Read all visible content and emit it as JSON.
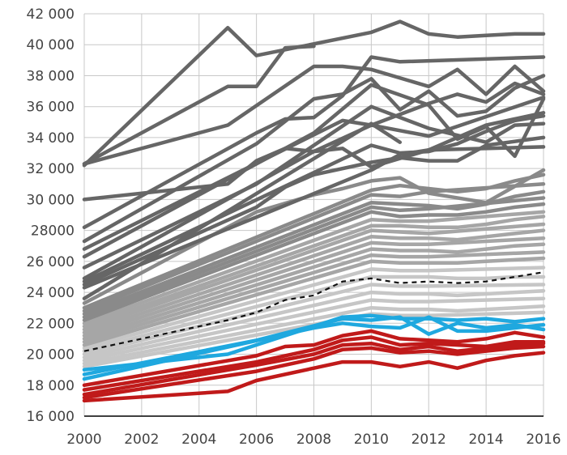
{
  "chart_data": {
    "type": "line",
    "title": "",
    "xlabel": "",
    "ylabel": "",
    "xlim": [
      2000,
      2016
    ],
    "ylim": [
      16000,
      42000
    ],
    "grid": true,
    "legend": "none",
    "x": [
      2000,
      2001,
      2002,
      2003,
      2004,
      2005,
      2006,
      2007,
      2008,
      2009,
      2010,
      2011,
      2012,
      2013,
      2014,
      2015,
      2016
    ],
    "x_ticks": [
      2000,
      2002,
      2004,
      2006,
      2008,
      2010,
      2012,
      2014,
      2016
    ],
    "x_tick_labels": [
      "2000",
      "2002",
      "2004",
      "2006",
      "2008",
      "2010",
      "2012",
      "2014",
      "2016"
    ],
    "y_ticks": [
      16000,
      18000,
      20000,
      22000,
      24000,
      26000,
      28000,
      30000,
      32000,
      34000,
      36000,
      38000,
      40000,
      42000
    ],
    "y_tick_labels": [
      "16 000",
      "18 000",
      "20 000",
      "22 000",
      "24 000",
      "26 000",
      "28000",
      "30 000",
      "32 000",
      "34 000",
      "36 000",
      "38 000",
      "40 000",
      "42 000"
    ],
    "colors": {
      "dark": "#666666",
      "mid": "#8a8a8a",
      "light": "#a6a6a6",
      "pale": "#c6c6c6",
      "blue": "#1fa8df",
      "red": "#c01a1a",
      "reference": "#111111",
      "grid": "#c8c8c8"
    },
    "series": [
      {
        "group": "dark",
        "values": [
          32200,
          null,
          null,
          null,
          null,
          41100,
          39300,
          null,
          null,
          null,
          40800,
          41500,
          40700,
          40500,
          40600,
          40700,
          40700
        ]
      },
      {
        "group": "dark",
        "values": [
          32300,
          null,
          null,
          null,
          null,
          37300,
          37300,
          39800,
          39900,
          null,
          null,
          null,
          null,
          null,
          null,
          null,
          null
        ]
      },
      {
        "group": "dark",
        "values": [
          null,
          null,
          null,
          null,
          null,
          null,
          null,
          null,
          null,
          null,
          null,
          null,
          null,
          null,
          null,
          null,
          null
        ]
      },
      {
        "group": "dark",
        "values": [
          30000,
          null,
          null,
          null,
          null,
          31000,
          32500,
          33300,
          33100,
          null,
          34800,
          null,
          34100,
          null,
          null,
          null,
          36600
        ]
      },
      {
        "group": "dark",
        "values": [
          28700,
          null,
          null,
          null,
          null,
          null,
          null,
          null,
          null,
          null,
          null,
          null,
          null,
          null,
          null,
          null,
          null
        ]
      },
      {
        "group": "dark",
        "values": [
          null,
          null,
          null,
          null,
          null,
          null,
          null,
          null,
          null,
          null,
          null,
          null,
          null,
          null,
          null,
          null,
          null
        ]
      },
      {
        "group": "dark",
        "values": [
          32300,
          null,
          null,
          null,
          null,
          34800,
          null,
          null,
          38600,
          38600,
          38400,
          null,
          37300,
          38400,
          36800,
          38600,
          37000
        ]
      },
      {
        "group": "dark",
        "values": [
          28200,
          null,
          null,
          null,
          null,
          null,
          34300,
          35200,
          35300,
          36700,
          39200,
          38900,
          null,
          null,
          null,
          null,
          39200
        ]
      },
      {
        "group": "dark",
        "values": [
          27300,
          null,
          null,
          null,
          null,
          null,
          33600,
          null,
          36500,
          36800,
          37800,
          35800,
          37000,
          35400,
          35700,
          37200,
          38000
        ]
      },
      {
        "group": "dark",
        "values": [
          26800,
          null,
          null,
          null,
          null,
          null,
          null,
          null,
          null,
          35100,
          34800,
          null,
          36200,
          36800,
          36300,
          37500,
          36800
        ]
      },
      {
        "group": "dark",
        "values": [
          26300,
          null,
          null,
          null,
          null,
          null,
          32300,
          null,
          34300,
          null,
          37400,
          null,
          36100,
          33900,
          34700,
          32800,
          36500
        ]
      },
      {
        "group": "dark",
        "values": [
          25600,
          null,
          null,
          null,
          null,
          null,
          31000,
          null,
          null,
          null,
          36000,
          null,
          34600,
          null,
          33700,
          34800,
          34900
        ]
      },
      {
        "group": "dark",
        "values": [
          25300,
          null,
          null,
          null,
          null,
          null,
          null,
          null,
          null,
          null,
          null,
          null,
          null,
          null,
          null,
          null,
          null
        ]
      },
      {
        "group": "dark",
        "values": [
          24900,
          null,
          null,
          null,
          null,
          null,
          null,
          null,
          33100,
          33300,
          32100,
          null,
          33200,
          null,
          34800,
          null,
          35600
        ]
      },
      {
        "group": "dark",
        "values": [
          24700,
          null,
          null,
          null,
          null,
          null,
          null,
          null,
          null,
          null,
          33500,
          33000,
          33100,
          33600,
          34400,
          35100,
          35400
        ]
      },
      {
        "group": "dark",
        "values": [
          24500,
          null,
          null,
          null,
          null,
          null,
          29500,
          30800,
          31600,
          null,
          32400,
          32700,
          32500,
          32500,
          33500,
          null,
          34000
        ]
      },
      {
        "group": "dark",
        "values": [
          24300,
          null,
          null,
          null,
          null,
          null,
          null,
          null,
          null,
          null,
          31900,
          32900,
          33200,
          null,
          null,
          null,
          33400
        ]
      },
      {
        "group": "dark",
        "values": [
          24000,
          null,
          null,
          null,
          null,
          null,
          null,
          null,
          null,
          null,
          null,
          null,
          null,
          null,
          null,
          null,
          null
        ]
      },
      {
        "group": "dark",
        "values": [
          23600,
          null,
          null,
          null,
          null,
          null,
          null,
          null,
          null,
          null,
          34900,
          33700,
          null,
          null,
          null,
          null,
          null
        ]
      },
      {
        "group": "mid",
        "values": [
          23300,
          null,
          null,
          null,
          null,
          null,
          29200,
          null,
          30300,
          30700,
          31200,
          31400,
          30400,
          null,
          29800,
          null,
          31900
        ]
      },
      {
        "group": "mid",
        "values": [
          23000,
          null,
          null,
          null,
          null,
          null,
          null,
          null,
          null,
          null,
          30600,
          30900,
          30700,
          30500,
          30700,
          31200,
          31600
        ]
      },
      {
        "group": "mid",
        "values": [
          22800,
          null,
          null,
          null,
          null,
          null,
          null,
          null,
          null,
          null,
          30300,
          30200,
          30500,
          null,
          null,
          null,
          31000
        ]
      },
      {
        "group": "mid",
        "values": [
          22600,
          null,
          null,
          null,
          null,
          null,
          null,
          null,
          null,
          null,
          29800,
          29700,
          29600,
          29400,
          29700,
          30200,
          30500
        ]
      },
      {
        "group": "mid",
        "values": [
          22400,
          null,
          null,
          null,
          null,
          null,
          null,
          null,
          null,
          null,
          29500,
          29300,
          29400,
          null,
          null,
          null,
          30100
        ]
      },
      {
        "group": "mid",
        "values": [
          22200,
          null,
          null,
          null,
          null,
          null,
          null,
          null,
          null,
          null,
          29200,
          28900,
          29000,
          29000,
          29200,
          29500,
          29700
        ]
      },
      {
        "group": "light",
        "values": [
          22000,
          null,
          null,
          null,
          null,
          null,
          null,
          null,
          null,
          null,
          28700,
          28600,
          28600,
          null,
          null,
          null,
          29200
        ]
      },
      {
        "group": "light",
        "values": [
          21800,
          null,
          null,
          null,
          null,
          null,
          null,
          null,
          null,
          null,
          28300,
          28300,
          28200,
          28200,
          28400,
          28700,
          28900
        ]
      },
      {
        "group": "light",
        "values": [
          21600,
          null,
          null,
          null,
          null,
          null,
          null,
          null,
          null,
          null,
          28000,
          27900,
          27800,
          null,
          null,
          null,
          28400
        ]
      },
      {
        "group": "light",
        "values": [
          21400,
          null,
          null,
          null,
          null,
          null,
          null,
          null,
          null,
          null,
          27600,
          27500,
          27500,
          27400,
          27600,
          27800,
          28000
        ]
      },
      {
        "group": "light",
        "values": [
          21200,
          null,
          null,
          null,
          null,
          null,
          null,
          null,
          null,
          null,
          27200,
          27100,
          27100,
          null,
          null,
          null,
          27500
        ]
      },
      {
        "group": "light",
        "values": [
          21000,
          null,
          null,
          null,
          null,
          null,
          null,
          null,
          null,
          null,
          26800,
          26700,
          26700,
          26600,
          26800,
          27000,
          27100
        ]
      },
      {
        "group": "light",
        "values": [
          20800,
          null,
          null,
          null,
          null,
          null,
          null,
          null,
          null,
          null,
          26400,
          26300,
          26300,
          null,
          null,
          null,
          26600
        ]
      },
      {
        "group": "light",
        "values": [
          20600,
          null,
          null,
          null,
          null,
          null,
          null,
          null,
          null,
          null,
          26000,
          25900,
          25900,
          25900,
          26000,
          26100,
          26200
        ]
      },
      {
        "group": "pale",
        "values": [
          20400,
          null,
          null,
          null,
          null,
          null,
          null,
          null,
          null,
          null,
          25500,
          25400,
          25400,
          null,
          null,
          null,
          25600
        ]
      },
      {
        "group": "pale",
        "values": [
          20200,
          null,
          null,
          null,
          null,
          null,
          null,
          null,
          null,
          null,
          25000,
          25000,
          25000,
          24900,
          24900,
          25000,
          25000
        ]
      },
      {
        "group": "pale",
        "values": [
          20000,
          null,
          null,
          null,
          null,
          null,
          null,
          null,
          null,
          null,
          24500,
          24400,
          24400,
          null,
          null,
          null,
          24500
        ]
      },
      {
        "group": "pale",
        "values": [
          19800,
          null,
          null,
          null,
          null,
          null,
          null,
          null,
          null,
          null,
          24000,
          23900,
          23900,
          23800,
          23900,
          24000,
          24100
        ]
      },
      {
        "group": "pale",
        "values": [
          19600,
          null,
          null,
          null,
          null,
          null,
          null,
          null,
          null,
          null,
          23500,
          23400,
          23400,
          null,
          null,
          null,
          23600
        ]
      },
      {
        "group": "pale",
        "values": [
          19400,
          null,
          null,
          null,
          null,
          null,
          null,
          null,
          null,
          null,
          23000,
          22900,
          22900,
          22800,
          22900,
          23000,
          23100
        ]
      },
      {
        "group": "pale",
        "values": [
          19200,
          null,
          null,
          null,
          null,
          null,
          null,
          null,
          null,
          null,
          22600,
          22500,
          22500,
          null,
          null,
          null,
          22700
        ]
      },
      {
        "group": "blue",
        "values": [
          19000,
          null,
          null,
          null,
          null,
          20000,
          null,
          null,
          null,
          22400,
          22500,
          22300,
          22300,
          22200,
          22300,
          22100,
          22300
        ]
      },
      {
        "group": "blue",
        "values": [
          18700,
          null,
          null,
          null,
          null,
          null,
          20900,
          null,
          null,
          22300,
          22200,
          22400,
          21300,
          22000,
          21700,
          21900,
          21600
        ]
      },
      {
        "group": "blue",
        "values": [
          18400,
          null,
          null,
          null,
          null,
          null,
          null,
          null,
          21700,
          22000,
          21800,
          21700,
          22400,
          21500,
          21500,
          21700,
          21900
        ]
      },
      {
        "group": "red",
        "values": [
          18000,
          null,
          null,
          null,
          null,
          null,
          19900,
          20500,
          20600,
          21200,
          21500,
          21000,
          20900,
          20800,
          21000,
          21400,
          21100
        ]
      },
      {
        "group": "red",
        "values": [
          17700,
          null,
          null,
          null,
          null,
          null,
          19500,
          null,
          20300,
          20900,
          21100,
          20600,
          20700,
          20600,
          20500,
          20800,
          20800
        ]
      },
      {
        "group": "red",
        "values": [
          17400,
          null,
          null,
          null,
          null,
          null,
          19300,
          null,
          20000,
          20600,
          20700,
          20300,
          20500,
          20200,
          20400,
          20600,
          20700
        ]
      },
      {
        "group": "red",
        "values": [
          17200,
          null,
          null,
          null,
          null,
          null,
          18900,
          null,
          19700,
          20300,
          20400,
          20100,
          20200,
          20000,
          20200,
          20400,
          20500
        ]
      },
      {
        "group": "red",
        "values": [
          17000,
          null,
          null,
          null,
          null,
          17600,
          18300,
          null,
          19100,
          19500,
          19500,
          19200,
          19500,
          19100,
          19600,
          19900,
          20100
        ]
      }
    ],
    "reference": {
      "style": "dashed",
      "values": [
        20200,
        null,
        null,
        null,
        null,
        22200,
        22700,
        23500,
        23800,
        24700,
        24900,
        24600,
        24700,
        24600,
        24700,
        25000,
        25300
      ]
    }
  }
}
